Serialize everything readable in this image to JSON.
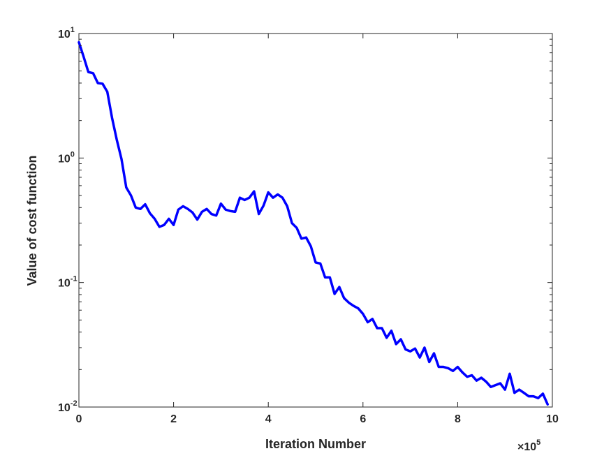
{
  "chart_data": {
    "type": "line",
    "title": "",
    "xlabel": "Iteration Number",
    "ylabel": "Value of cost function",
    "x_multiplier": {
      "base": "×10",
      "exponent": "5"
    },
    "xlim": [
      0,
      10
    ],
    "ylim": [
      0.01,
      10
    ],
    "yscale": "log",
    "x_ticks": [
      {
        "value": 0,
        "label": "0"
      },
      {
        "value": 2,
        "label": "2"
      },
      {
        "value": 4,
        "label": "4"
      },
      {
        "value": 6,
        "label": "6"
      },
      {
        "value": 8,
        "label": "8"
      },
      {
        "value": 10,
        "label": "10"
      }
    ],
    "y_ticks": [
      {
        "value": 0.01,
        "base": "10",
        "exponent": "-2"
      },
      {
        "value": 0.1,
        "base": "10",
        "exponent": "-1"
      },
      {
        "value": 1,
        "base": "10",
        "exponent": "0"
      },
      {
        "value": 10,
        "base": "10",
        "exponent": "1"
      }
    ],
    "grid": false,
    "series": [
      {
        "color": "#0000ff",
        "x": [
          0.0,
          0.1,
          0.2,
          0.3,
          0.4,
          0.5,
          0.6,
          0.7,
          0.8,
          0.9,
          1.0,
          1.1,
          1.2,
          1.3,
          1.4,
          1.5,
          1.6,
          1.7,
          1.8,
          1.9,
          2.0,
          2.1,
          2.2,
          2.3,
          2.4,
          2.5,
          2.6,
          2.7,
          2.8,
          2.9,
          3.0,
          3.1,
          3.2,
          3.3,
          3.4,
          3.5,
          3.6,
          3.7,
          3.8,
          3.9,
          4.0,
          4.1,
          4.2,
          4.3,
          4.4,
          4.5,
          4.6,
          4.7,
          4.8,
          4.9,
          5.0,
          5.1,
          5.2,
          5.3,
          5.4,
          5.5,
          5.6,
          5.7,
          5.8,
          5.9,
          6.0,
          6.1,
          6.2,
          6.3,
          6.4,
          6.5,
          6.6,
          6.7,
          6.8,
          6.9,
          7.0,
          7.1,
          7.2,
          7.3,
          7.4,
          7.5,
          7.6,
          7.7,
          7.8,
          7.9,
          8.0,
          8.1,
          8.2,
          8.3,
          8.4,
          8.5,
          8.6,
          8.7,
          8.8,
          8.9,
          9.0,
          9.1,
          9.2,
          9.3,
          9.4,
          9.5,
          9.6,
          9.7,
          9.8,
          9.9
        ],
        "y": [
          8.5,
          6.5,
          4.9,
          4.8,
          4.0,
          3.95,
          3.4,
          2.1,
          1.4,
          0.98,
          0.58,
          0.5,
          0.4,
          0.39,
          0.425,
          0.36,
          0.325,
          0.28,
          0.29,
          0.325,
          0.29,
          0.385,
          0.41,
          0.39,
          0.365,
          0.32,
          0.37,
          0.39,
          0.355,
          0.345,
          0.43,
          0.385,
          0.375,
          0.37,
          0.48,
          0.46,
          0.48,
          0.54,
          0.355,
          0.415,
          0.53,
          0.48,
          0.51,
          0.48,
          0.41,
          0.3,
          0.275,
          0.225,
          0.23,
          0.195,
          0.145,
          0.142,
          0.11,
          0.11,
          0.081,
          0.092,
          0.075,
          0.069,
          0.065,
          0.062,
          0.056,
          0.048,
          0.051,
          0.043,
          0.043,
          0.036,
          0.041,
          0.032,
          0.035,
          0.029,
          0.028,
          0.0295,
          0.025,
          0.03,
          0.023,
          0.027,
          0.021,
          0.021,
          0.0205,
          0.0195,
          0.021,
          0.019,
          0.0175,
          0.018,
          0.0163,
          0.0172,
          0.016,
          0.0145,
          0.015,
          0.0155,
          0.0138,
          0.0185,
          0.013,
          0.0138,
          0.013,
          0.0122,
          0.0122,
          0.0118,
          0.0128,
          0.0105
        ]
      }
    ]
  }
}
